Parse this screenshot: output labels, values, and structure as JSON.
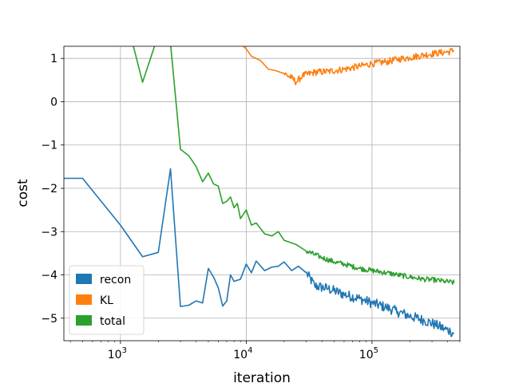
{
  "chart_data": {
    "type": "line",
    "title": "",
    "xlabel": "iteration",
    "ylabel": "cost",
    "xscale": "log",
    "xlim": [
      355,
      500000
    ],
    "ylim": [
      -5.52,
      1.28
    ],
    "x_major_ticks": [
      1000,
      10000,
      100000
    ],
    "x_tick_labels": [
      {
        "base": "10",
        "exp": "3"
      },
      {
        "base": "10",
        "exp": "4"
      },
      {
        "base": "10",
        "exp": "5"
      }
    ],
    "y_ticks": [
      -5,
      -4,
      -3,
      -2,
      -1,
      0,
      1
    ],
    "y_tick_labels": [
      "−5",
      "−4",
      "−3",
      "−2",
      "−1",
      "0",
      "1"
    ],
    "grid": true,
    "legend_position": "lower-left",
    "series": [
      {
        "name": "recon",
        "color": "#1f77b4",
        "points": [
          [
            355,
            -1.77
          ],
          [
            500,
            -1.77
          ],
          [
            1000,
            -2.85
          ],
          [
            1500,
            -3.58
          ],
          [
            2000,
            -3.48
          ],
          [
            2500,
            -1.55
          ],
          [
            3000,
            -4.73
          ],
          [
            3500,
            -4.7
          ],
          [
            4000,
            -4.6
          ],
          [
            4500,
            -4.65
          ],
          [
            5000,
            -3.85
          ],
          [
            5500,
            -4.05
          ],
          [
            6000,
            -4.3
          ],
          [
            6500,
            -4.72
          ],
          [
            7000,
            -4.6
          ],
          [
            7500,
            -4.0
          ],
          [
            8000,
            -4.15
          ],
          [
            9000,
            -4.1
          ],
          [
            10000,
            -3.75
          ],
          [
            11000,
            -3.95
          ],
          [
            12000,
            -3.68
          ],
          [
            14000,
            -3.9
          ],
          [
            16000,
            -3.82
          ],
          [
            18000,
            -3.8
          ],
          [
            20000,
            -3.7
          ],
          [
            23000,
            -3.9
          ],
          [
            26000,
            -3.8
          ],
          [
            30000,
            -3.95
          ],
          [
            35000,
            -4.25
          ],
          [
            45000,
            -4.32
          ],
          [
            60000,
            -4.45
          ],
          [
            80000,
            -4.55
          ],
          [
            100000,
            -4.65
          ],
          [
            130000,
            -4.75
          ],
          [
            160000,
            -4.85
          ],
          [
            200000,
            -4.95
          ],
          [
            260000,
            -5.05
          ],
          [
            320000,
            -5.15
          ],
          [
            380000,
            -5.25
          ],
          [
            420000,
            -5.3
          ],
          [
            450000,
            -5.35
          ]
        ],
        "noise_from": 30000,
        "noise_amp": 0.12
      },
      {
        "name": "KL",
        "color": "#ff7f0e",
        "points": [
          [
            9500,
            1.28
          ],
          [
            10000,
            1.22
          ],
          [
            11000,
            1.05
          ],
          [
            13000,
            0.95
          ],
          [
            15000,
            0.75
          ],
          [
            17000,
            0.72
          ],
          [
            20000,
            0.65
          ],
          [
            23000,
            0.55
          ],
          [
            25000,
            0.45
          ],
          [
            28000,
            0.6
          ],
          [
            35000,
            0.68
          ],
          [
            45000,
            0.7
          ],
          [
            60000,
            0.75
          ],
          [
            80000,
            0.82
          ],
          [
            100000,
            0.88
          ],
          [
            130000,
            0.92
          ],
          [
            160000,
            0.98
          ],
          [
            200000,
            1.02
          ],
          [
            260000,
            1.08
          ],
          [
            320000,
            1.12
          ],
          [
            400000,
            1.15
          ],
          [
            450000,
            1.18
          ]
        ],
        "noise_from": 20000,
        "noise_amp": 0.08
      },
      {
        "name": "total",
        "color": "#2ca02c",
        "points": [
          [
            1250,
            1.35
          ],
          [
            1500,
            0.45
          ],
          [
            1900,
            1.35
          ],
          [
            2500,
            1.35
          ],
          [
            3000,
            -1.1
          ],
          [
            3500,
            -1.25
          ],
          [
            4000,
            -1.5
          ],
          [
            4500,
            -1.85
          ],
          [
            5000,
            -1.65
          ],
          [
            5500,
            -1.9
          ],
          [
            6000,
            -1.95
          ],
          [
            6500,
            -2.35
          ],
          [
            7000,
            -2.3
          ],
          [
            7500,
            -2.2
          ],
          [
            8000,
            -2.45
          ],
          [
            8500,
            -2.35
          ],
          [
            9000,
            -2.7
          ],
          [
            9500,
            -2.6
          ],
          [
            10000,
            -2.5
          ],
          [
            11000,
            -2.85
          ],
          [
            12000,
            -2.8
          ],
          [
            14000,
            -3.05
          ],
          [
            16000,
            -3.1
          ],
          [
            18000,
            -3.0
          ],
          [
            20000,
            -3.2
          ],
          [
            25000,
            -3.3
          ],
          [
            30000,
            -3.45
          ],
          [
            40000,
            -3.6
          ],
          [
            50000,
            -3.7
          ],
          [
            60000,
            -3.75
          ],
          [
            80000,
            -3.85
          ],
          [
            100000,
            -3.9
          ],
          [
            130000,
            -3.95
          ],
          [
            160000,
            -4.0
          ],
          [
            200000,
            -4.05
          ],
          [
            260000,
            -4.1
          ],
          [
            320000,
            -4.12
          ],
          [
            380000,
            -4.15
          ],
          [
            450000,
            -4.18
          ]
        ],
        "noise_from": 30000,
        "noise_amp": 0.06
      }
    ]
  }
}
